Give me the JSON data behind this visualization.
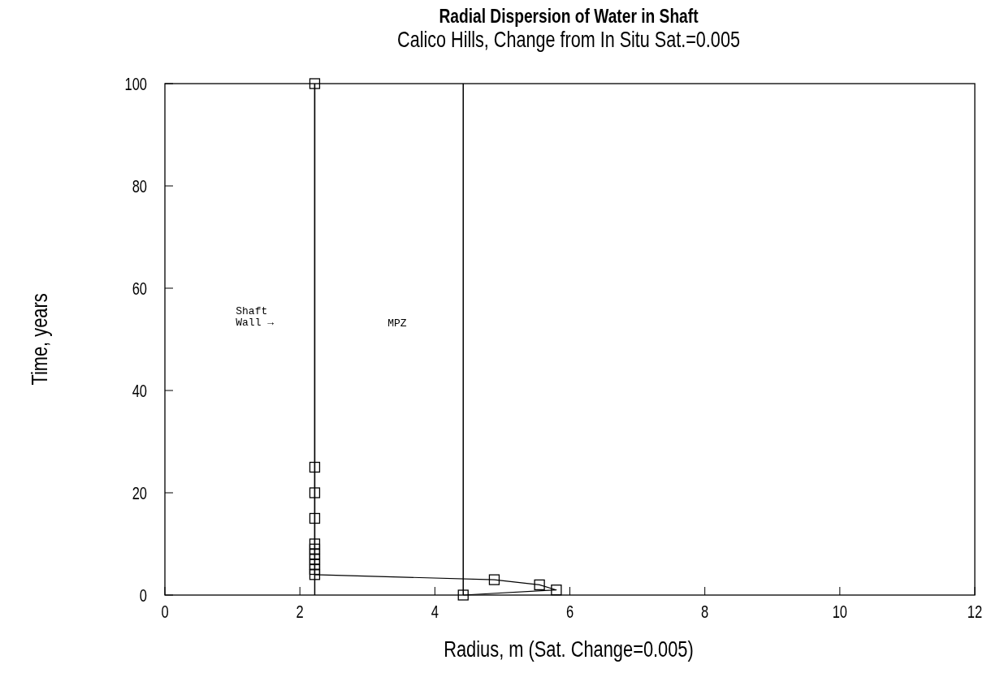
{
  "chart_data": {
    "type": "line",
    "title": "Radial Dispersion of Water in Shaft",
    "subtitle": "Calico Hills, Change from In Situ Sat.=0.005",
    "xlabel": "Radius, m (Sat. Change=0.005)",
    "ylabel": "Time, years",
    "series": [
      {
        "color": "#000000",
        "x": [
          2.22,
          2.22,
          2.22,
          2.22,
          2.22,
          2.22,
          2.22,
          2.22,
          2.22,
          2.22,
          2.22,
          4.88,
          5.55,
          5.8,
          4.42
        ],
        "values": [
          100,
          25,
          20,
          15,
          10,
          9,
          8,
          7,
          6,
          5,
          4,
          3,
          2,
          1,
          0
        ]
      }
    ],
    "marker": "square",
    "xlim": [
      0,
      12
    ],
    "ylim": [
      0,
      100
    ],
    "xticks": [
      0,
      2,
      4,
      6,
      8,
      10,
      12
    ],
    "yticks": [
      0,
      20,
      40,
      60,
      80,
      100
    ],
    "ref_lines": [
      {
        "axis": "x",
        "value": 2.22,
        "color": "#000000"
      },
      {
        "axis": "x",
        "value": 4.42,
        "color": "#000000"
      }
    ],
    "annotations": [
      "Shaft Wall →",
      "MPZ"
    ]
  }
}
